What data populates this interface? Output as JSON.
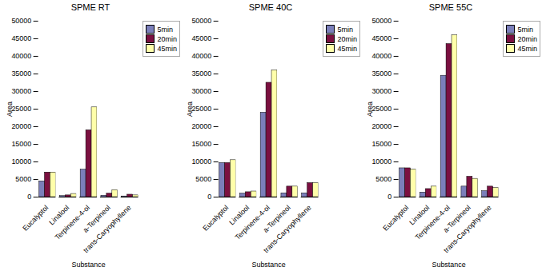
{
  "chart_data": [
    {
      "type": "bar",
      "title": "SPME RT",
      "xlabel": "Substance",
      "ylabel": "Area",
      "categories": [
        "Eucalyptol",
        "Linalool",
        "Terpinene-4-ol",
        "a-Terpineol",
        "trans-Caryophyllene"
      ],
      "series": [
        {
          "name": "5min",
          "color": "#7b7fba",
          "values": [
            4500,
            300,
            7800,
            400,
            200
          ]
        },
        {
          "name": "20min",
          "color": "#7b1040",
          "values": [
            7000,
            500,
            19000,
            1000,
            700
          ]
        },
        {
          "name": "45min",
          "color": "#ffffaa",
          "values": [
            7000,
            900,
            25500,
            2000,
            500
          ]
        }
      ],
      "ylim": [
        0,
        50000
      ],
      "yticks": [
        0,
        5000,
        10000,
        15000,
        20000,
        25000,
        30000,
        35000,
        40000,
        45000,
        50000
      ],
      "grid": false,
      "legend": "right"
    },
    {
      "type": "bar",
      "title": "SPME 40C",
      "xlabel": "Substance",
      "ylabel": "Area",
      "categories": [
        "Eucalyptol",
        "Linalool",
        "Terpinene-4-ol",
        "a-Terpineol",
        "trans-Caryophyllene"
      ],
      "series": [
        {
          "name": "5min",
          "color": "#7b7fba",
          "values": [
            9700,
            1000,
            24000,
            1100,
            1100
          ]
        },
        {
          "name": "20min",
          "color": "#7b1040",
          "values": [
            9700,
            1400,
            32500,
            3000,
            4000
          ]
        },
        {
          "name": "45min",
          "color": "#ffffaa",
          "values": [
            10500,
            1600,
            36000,
            3000,
            4000
          ]
        }
      ],
      "ylim": [
        0,
        50000
      ],
      "yticks": [
        0,
        5000,
        10000,
        15000,
        20000,
        25000,
        30000,
        35000,
        40000,
        45000,
        50000
      ],
      "grid": false,
      "legend": "right"
    },
    {
      "type": "bar",
      "title": "SPME 55C",
      "xlabel": "Substance",
      "ylabel": "Area",
      "categories": [
        "Eucalyptol",
        "Linalool",
        "Terpinene-4-ol",
        "a-Terpineol",
        "trans-Caryophyllene"
      ],
      "series": [
        {
          "name": "5min",
          "color": "#7b7fba",
          "values": [
            8200,
            1300,
            34500,
            3000,
            1700
          ]
        },
        {
          "name": "20min",
          "color": "#7b1040",
          "values": [
            8200,
            2300,
            43500,
            5800,
            3000
          ]
        },
        {
          "name": "45min",
          "color": "#ffffaa",
          "values": [
            7800,
            3000,
            46000,
            5200,
            2600
          ]
        }
      ],
      "ylim": [
        0,
        50000
      ],
      "yticks": [
        0,
        5000,
        10000,
        15000,
        20000,
        25000,
        30000,
        35000,
        40000,
        45000,
        50000
      ],
      "grid": false,
      "legend": "right"
    }
  ]
}
